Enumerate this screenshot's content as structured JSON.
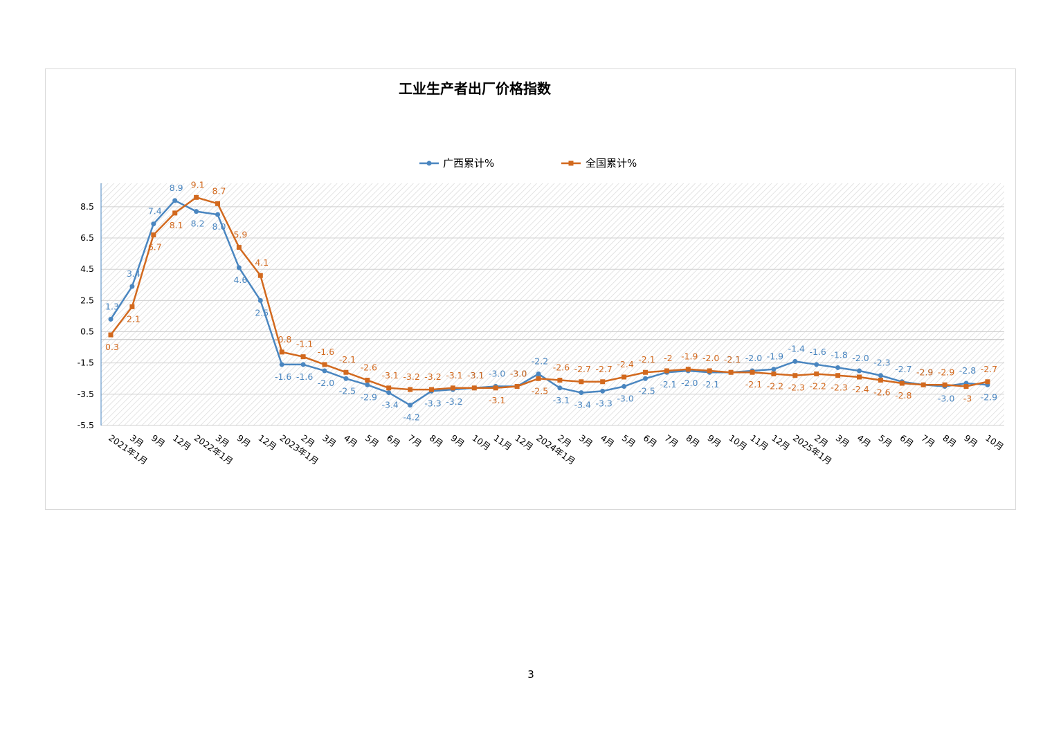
{
  "page": {
    "number": "3"
  },
  "chart_data": {
    "type": "line",
    "title": "工业生产者出厂价格指数",
    "xlabel": "",
    "ylabel": "",
    "ylim": [
      -5.5,
      10
    ],
    "yticks": [
      8.5,
      6.5,
      4.5,
      2.5,
      0.5,
      -1.5,
      -3.5,
      -5.5
    ],
    "grid": true,
    "legend_position": "top-center",
    "categories": [
      "2021年1月",
      "3月",
      "9月",
      "12月",
      "2022年1月",
      "3月",
      "9月",
      "12月",
      "2023年1月",
      "2月",
      "3月",
      "4月",
      "5月",
      "6月",
      "7月",
      "8月",
      "9月",
      "10月",
      "11月",
      "12月",
      "2024年1月",
      "2月",
      "3月",
      "4月",
      "5月",
      "6月",
      "7月",
      "8月",
      "9月",
      "10月",
      "11月",
      "12月",
      "2025年1月",
      "2月",
      "3月",
      "4月",
      "5月",
      "6月",
      "7月",
      "8月",
      "9月",
      "10月"
    ],
    "series": [
      {
        "name": "广西累计%",
        "color": "#4a86c0",
        "marker": "circle",
        "values": [
          1.3,
          3.4,
          7.4,
          8.9,
          8.2,
          8.0,
          4.6,
          2.5,
          -1.6,
          -1.6,
          -2.0,
          -2.5,
          -2.9,
          -3.4,
          -4.2,
          -3.3,
          -3.2,
          -3.1,
          -3.0,
          -3.0,
          -2.2,
          -3.1,
          -3.4,
          -3.3,
          -3.0,
          -2.5,
          -2.1,
          -2.0,
          -2.1,
          -2.1,
          -2.0,
          -1.9,
          -1.4,
          -1.6,
          -1.8,
          -2.0,
          -2.3,
          -2.7,
          -2.9,
          -3.0,
          -2.8,
          -2.9
        ],
        "labels": [
          "1.3",
          "3.4",
          "7.4",
          "8.9",
          "8.2",
          "8.0",
          "4.6",
          "2.5",
          "-1.6",
          "-1.6",
          "-2.0",
          "-2.5",
          "-2.9",
          "-3.4",
          "-4.2",
          "-3.3",
          "-3.2",
          "-3.1",
          "-3.0",
          "-3.0",
          "-2.2",
          "-3.1",
          "-3.4",
          "-3.3",
          "-3.0",
          "-2.5",
          "-2.1",
          "-2.0",
          "-2.1",
          "-2.1",
          "-2.0",
          "-1.9",
          "-1.4",
          "-1.6",
          "-1.8",
          "-2.0",
          "-2.3",
          "-2.7",
          "-2.9",
          "-3.0",
          "-2.8",
          "-2.9"
        ]
      },
      {
        "name": "全国累计%",
        "color": "#d2691e",
        "marker": "square",
        "values": [
          0.3,
          2.1,
          6.7,
          8.1,
          9.1,
          8.7,
          5.9,
          4.1,
          -0.8,
          -1.1,
          -1.6,
          -2.1,
          -2.6,
          -3.1,
          -3.2,
          -3.2,
          -3.1,
          -3.1,
          -3.1,
          -3.0,
          -2.5,
          -2.6,
          -2.7,
          -2.7,
          -2.4,
          -2.1,
          -2.0,
          -1.9,
          -2.0,
          -2.1,
          -2.1,
          -2.2,
          -2.3,
          -2.2,
          -2.3,
          -2.4,
          -2.6,
          -2.8,
          -2.9,
          -2.9,
          -3.0,
          -2.7
        ],
        "labels": [
          "0.3",
          "2.1",
          "6.7",
          "8.1",
          "9.1",
          "8.7",
          "5.9",
          "4.1",
          "-0.8",
          "-1.1",
          "-1.6",
          "-2.1",
          "-2.6",
          "-3.1",
          "-3.2",
          "-3.2",
          "-3.1",
          "-3.1",
          "-3.1",
          "-3.0",
          "-2.5",
          "-2.6",
          "-2.7",
          "-2.7",
          "-2.4",
          "-2.1",
          "-2",
          "-1.9",
          "-2.0",
          "-2.1",
          "-2.1",
          "-2.2",
          "-2.3",
          "-2.2",
          "-2.3",
          "-2.4",
          "-2.6",
          "-2.8",
          "-2.9",
          "-2.9",
          "-3",
          "-2.7"
        ]
      }
    ]
  }
}
